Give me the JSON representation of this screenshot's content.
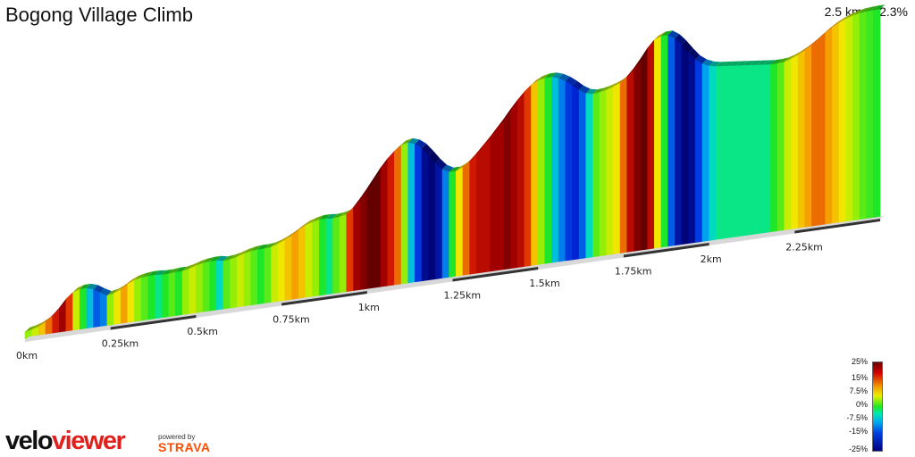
{
  "title": "Bogong Village Climb",
  "summary": "2.5 km at 2.3%",
  "distance_labels": [
    "0km",
    "0.25km",
    "0.5km",
    "0.75km",
    "1km",
    "1.25km",
    "1.5km",
    "1.75km",
    "2km",
    "2.25km"
  ],
  "legend": {
    "ticks": [
      "25%",
      "15%",
      "7.5%",
      "0%",
      "-7.5%",
      "-15%",
      "-25%"
    ]
  },
  "branding": {
    "logo_part1": "velo",
    "logo_part2": "viewer",
    "powered_by": "powered by",
    "strava": "STRAVA"
  },
  "chart_data": {
    "type": "area",
    "title": "Bogong Village Climb",
    "xlabel": "",
    "ylabel": "",
    "x_unit": "km",
    "color_scale": "gradient %",
    "x": [
      0.0,
      0.02,
      0.04,
      0.06,
      0.08,
      0.1,
      0.12,
      0.14,
      0.16,
      0.18,
      0.2,
      0.22,
      0.24,
      0.26,
      0.28,
      0.3,
      0.32,
      0.34,
      0.36,
      0.38,
      0.4,
      0.42,
      0.44,
      0.46,
      0.48,
      0.5,
      0.52,
      0.54,
      0.56,
      0.58,
      0.6,
      0.62,
      0.64,
      0.66,
      0.68,
      0.7,
      0.72,
      0.74,
      0.76,
      0.78,
      0.8,
      0.82,
      0.84,
      0.86,
      0.88,
      0.9,
      0.92,
      0.94,
      0.96,
      0.98,
      1.0,
      1.02,
      1.04,
      1.06,
      1.08,
      1.1,
      1.12,
      1.14,
      1.16,
      1.18,
      1.2,
      1.22,
      1.24,
      1.26,
      1.28,
      1.3,
      1.32,
      1.34,
      1.36,
      1.38,
      1.4,
      1.42,
      1.44,
      1.46,
      1.48,
      1.5,
      1.52,
      1.54,
      1.56,
      1.58,
      1.6,
      1.62,
      1.64,
      1.66,
      1.68,
      1.7,
      1.72,
      1.74,
      1.76,
      1.78,
      1.8,
      1.82,
      1.84,
      1.86,
      1.88,
      1.9,
      1.92,
      1.94,
      1.96,
      1.98,
      2.0,
      2.02,
      2.04,
      2.06,
      2.08,
      2.1,
      2.12,
      2.14,
      2.16,
      2.18,
      2.2,
      2.22,
      2.24,
      2.26,
      2.28,
      2.3,
      2.32,
      2.34,
      2.36,
      2.38,
      2.4,
      2.42,
      2.44,
      2.46,
      2.48,
      2.5
    ],
    "gradient_percent": [
      4,
      6,
      10,
      14,
      18,
      22,
      16,
      6,
      0,
      -6,
      -12,
      -10,
      4,
      8,
      12,
      8,
      4,
      2,
      0,
      -2,
      0,
      2,
      0,
      4,
      6,
      4,
      2,
      0,
      -4,
      2,
      4,
      6,
      4,
      2,
      0,
      2,
      6,
      8,
      10,
      12,
      10,
      6,
      4,
      0,
      -2,
      2,
      4,
      16,
      22,
      24,
      26,
      26,
      22,
      18,
      14,
      4,
      -6,
      -14,
      -22,
      -24,
      -20,
      -10,
      0,
      8,
      14,
      18,
      20,
      20,
      22,
      22,
      24,
      22,
      20,
      16,
      10,
      4,
      0,
      -6,
      -10,
      -14,
      -16,
      -12,
      -4,
      2,
      4,
      6,
      8,
      14,
      20,
      24,
      26,
      20,
      8,
      0,
      -12,
      -20,
      -24,
      -22,
      -14,
      -8,
      -4,
      -2,
      -2,
      -2,
      -2,
      -2,
      -2,
      -2,
      -2,
      0,
      2,
      6,
      8,
      10,
      12,
      14,
      14,
      12,
      10,
      8,
      6,
      4,
      2,
      1,
      0,
      0
    ]
  }
}
